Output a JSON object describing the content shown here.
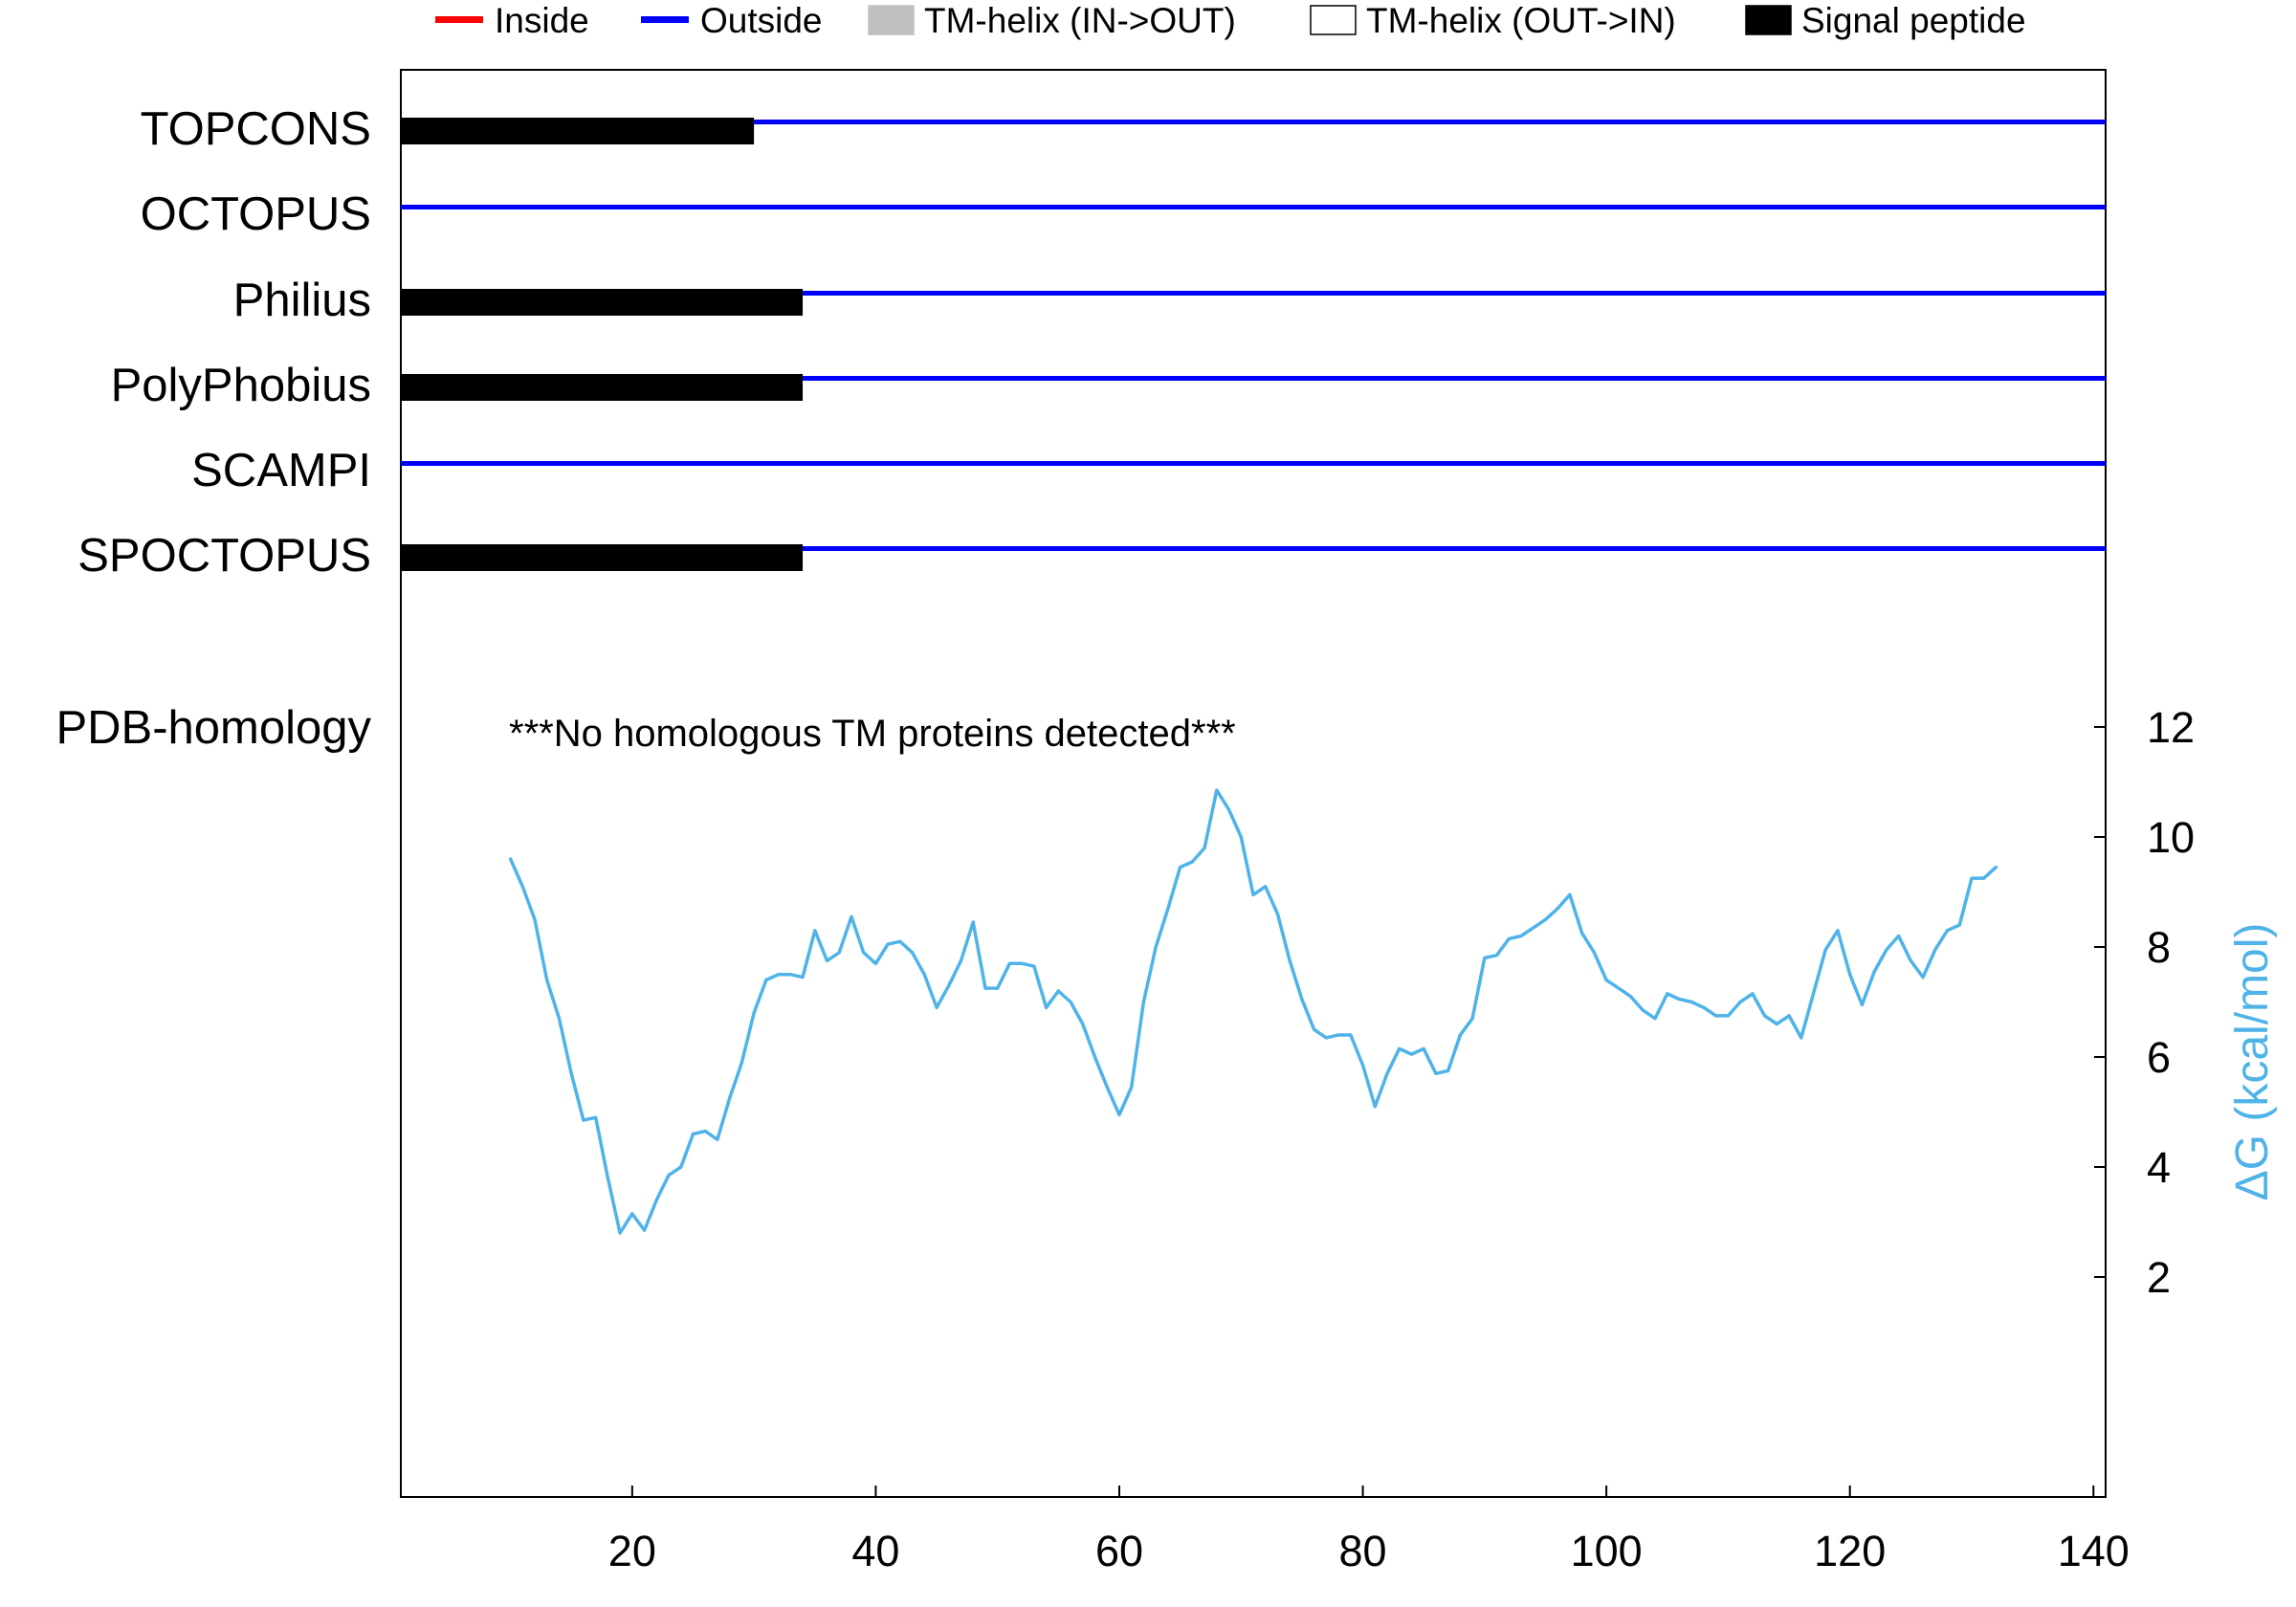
{
  "chart_data": {
    "type": "line",
    "legend": [
      {
        "label": "Inside",
        "color": "#ff0000",
        "style": "line"
      },
      {
        "label": "Outside",
        "color": "#0000ff",
        "style": "line"
      },
      {
        "label": "TM-helix (IN->OUT)",
        "color": "#c0c0c0",
        "style": "box"
      },
      {
        "label": "TM-helix (OUT->IN)",
        "color": "#ffffff",
        "style": "box"
      },
      {
        "label": "Signal peptide",
        "color": "#000000",
        "style": "box"
      }
    ],
    "legend_position": "top",
    "topology_tracks": [
      {
        "method": "TOPCONS",
        "segments": [
          {
            "type": "signal_peptide",
            "start": 1,
            "end": 30
          },
          {
            "type": "outside",
            "start": 30,
            "end": 141
          }
        ]
      },
      {
        "method": "OCTOPUS",
        "segments": [
          {
            "type": "outside",
            "start": 1,
            "end": 141
          }
        ]
      },
      {
        "method": "Philius",
        "segments": [
          {
            "type": "signal_peptide",
            "start": 1,
            "end": 34
          },
          {
            "type": "outside",
            "start": 34,
            "end": 141
          }
        ]
      },
      {
        "method": "PolyPhobius",
        "segments": [
          {
            "type": "signal_peptide",
            "start": 1,
            "end": 34
          },
          {
            "type": "outside",
            "start": 34,
            "end": 141
          }
        ]
      },
      {
        "method": "SCAMPI",
        "segments": [
          {
            "type": "outside",
            "start": 1,
            "end": 141
          }
        ]
      },
      {
        "method": "SPOCTOPUS",
        "segments": [
          {
            "type": "signal_peptide",
            "start": 1,
            "end": 34
          },
          {
            "type": "outside",
            "start": 34,
            "end": 141
          }
        ]
      }
    ],
    "pdb_homology": {
      "label": "PDB-homology",
      "note": "***No homologous TM proteins detected***"
    },
    "x_ticks": [
      20,
      40,
      60,
      80,
      100,
      120,
      140
    ],
    "xlim": [
      1,
      141
    ],
    "y2_label": "ΔG (kcal/mol)",
    "y2_ticks": [
      2,
      4,
      6,
      8,
      10,
      12
    ],
    "y2lim": [
      0,
      12
    ],
    "series": [
      {
        "color": "#4fb3e8",
        "x": [
          10,
          11,
          12,
          13,
          14,
          15,
          16,
          17,
          18,
          19,
          20,
          21,
          22,
          23,
          24,
          25,
          26,
          27,
          28,
          29,
          30,
          31,
          32,
          33,
          34,
          35,
          36,
          37,
          38,
          39,
          40,
          41,
          42,
          43,
          44,
          45,
          46,
          47,
          48,
          49,
          50,
          51,
          52,
          53,
          54,
          55,
          56,
          57,
          58,
          59,
          60,
          61,
          62,
          63,
          64,
          65,
          66,
          67,
          68,
          69,
          70,
          71,
          72,
          73,
          74,
          75,
          76,
          77,
          78,
          79,
          80,
          81,
          82,
          83,
          84,
          85,
          86,
          87,
          88,
          89,
          90,
          91,
          92,
          93,
          94,
          95,
          96,
          97,
          98,
          99,
          100,
          101,
          102,
          103,
          104,
          105,
          106,
          107,
          108,
          109,
          110,
          111,
          112,
          113,
          114,
          115,
          116,
          117,
          118,
          119,
          120,
          121,
          122,
          123,
          124,
          125,
          126,
          127,
          128,
          129,
          130,
          131,
          132
        ],
        "values": [
          9.6,
          9.1,
          8.5,
          7.4,
          6.7,
          5.7,
          4.85,
          4.9,
          3.8,
          2.8,
          3.15,
          2.85,
          3.4,
          3.85,
          4.0,
          4.6,
          4.65,
          4.5,
          5.25,
          5.9,
          6.8,
          7.4,
          7.5,
          7.5,
          7.45,
          8.3,
          7.75,
          7.9,
          8.55,
          7.9,
          7.7,
          8.05,
          8.1,
          7.9,
          7.5,
          6.9,
          7.3,
          7.75,
          8.45,
          7.25,
          7.25,
          7.7,
          7.7,
          7.65,
          6.9,
          7.2,
          7.0,
          6.6,
          6.0,
          5.45,
          4.95,
          5.45,
          7.0,
          8.0,
          8.7,
          9.45,
          9.55,
          9.8,
          10.85,
          10.5,
          10.0,
          8.95,
          9.1,
          8.6,
          7.75,
          7.05,
          6.5,
          6.35,
          6.4,
          6.4,
          5.85,
          5.1,
          5.7,
          6.15,
          6.05,
          6.15,
          5.7,
          5.75,
          6.4,
          6.7,
          7.8,
          7.85,
          8.15,
          8.2,
          8.35,
          8.5,
          8.7,
          8.95,
          8.25,
          7.9,
          7.4,
          7.25,
          7.1,
          6.85,
          6.7,
          7.15,
          7.05,
          7.0,
          6.9,
          6.75,
          6.75,
          7.0,
          7.15,
          6.75,
          6.6,
          6.75,
          6.35,
          7.15,
          7.95,
          8.3,
          7.5,
          6.95,
          7.55,
          7.95,
          8.2,
          7.75,
          7.45,
          7.95,
          8.3,
          8.4,
          9.25,
          9.25,
          9.45
        ]
      }
    ]
  }
}
